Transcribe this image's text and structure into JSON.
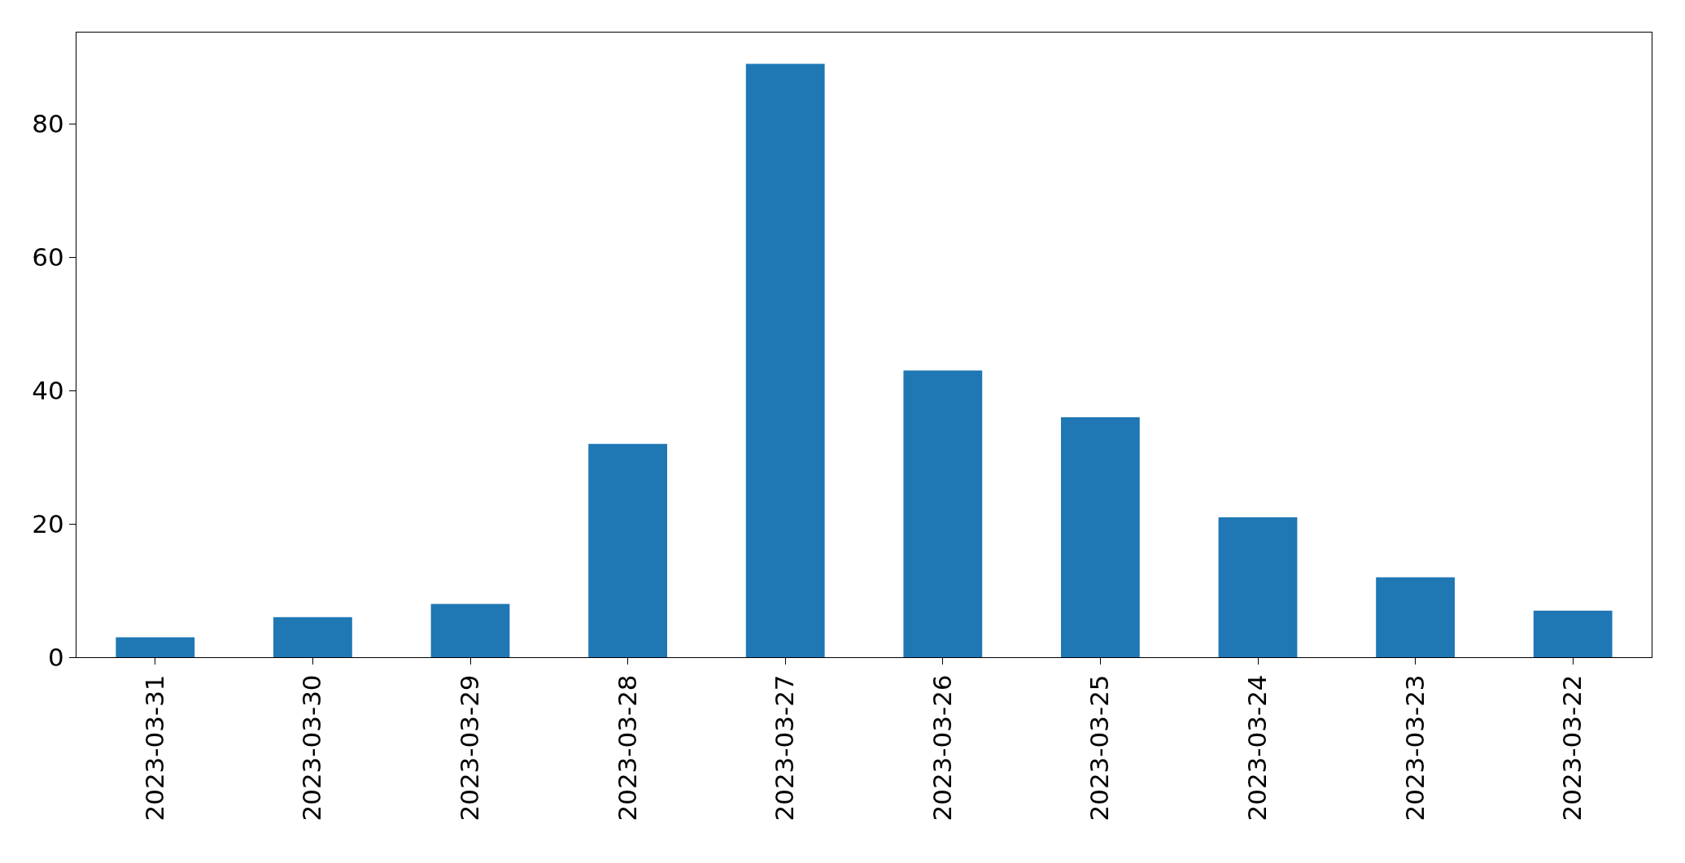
{
  "chart_data": {
    "type": "bar",
    "categories": [
      "2023-03-31",
      "2023-03-30",
      "2023-03-29",
      "2023-03-28",
      "2023-03-27",
      "2023-03-26",
      "2023-03-25",
      "2023-03-24",
      "2023-03-23",
      "2023-03-22"
    ],
    "values": [
      3,
      6,
      8,
      32,
      89,
      43,
      36,
      21,
      12,
      7
    ],
    "color": "#1f77b4",
    "ylim": [
      0,
      93.7
    ],
    "yticks": [
      0,
      20,
      40,
      60,
      80
    ]
  }
}
